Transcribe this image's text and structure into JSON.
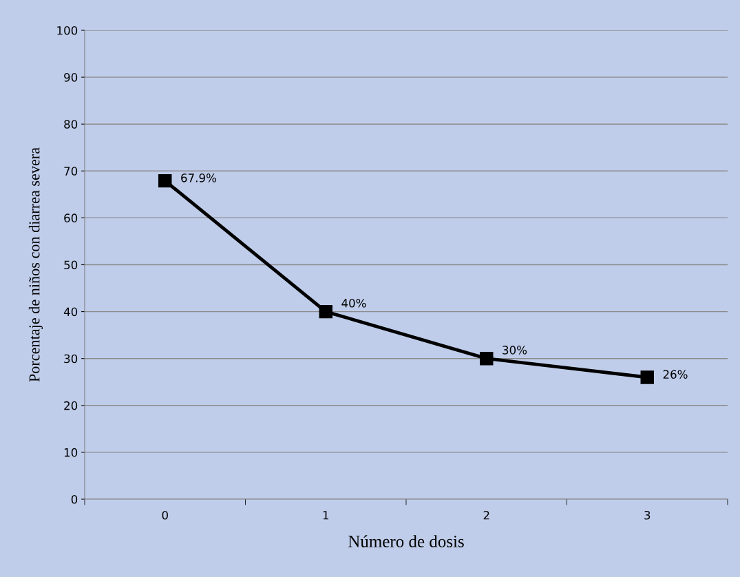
{
  "chart_data": {
    "type": "line",
    "xlabel": "Número de dosis",
    "ylabel": "Porcentaje de niños con diarrea severa",
    "categories": [
      "0",
      "1",
      "2",
      "3"
    ],
    "series": [
      {
        "color": "#000000",
        "values": [
          67.9,
          40,
          30,
          26
        ],
        "value_labels": [
          "67.9%",
          "40%",
          "30%",
          "26%"
        ]
      }
    ],
    "ylim": [
      0,
      100
    ],
    "yticks": [
      0,
      10,
      20,
      30,
      40,
      50,
      60,
      70,
      80,
      90,
      100
    ],
    "grid": "y",
    "marker": "square",
    "line_style": "solid",
    "legend": false
  }
}
